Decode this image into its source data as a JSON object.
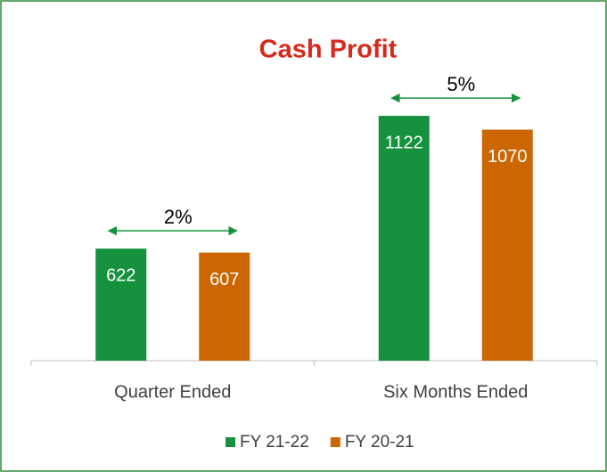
{
  "chart_data": {
    "type": "bar",
    "title": "Cash Profit",
    "categories": [
      "Quarter Ended",
      "Six Months Ended"
    ],
    "series": [
      {
        "name": "FY 21-22",
        "color": "#16923f",
        "values": [
          622,
          1122
        ]
      },
      {
        "name": "FY 20-21",
        "color": "#cc6600",
        "values": [
          607,
          1070
        ]
      }
    ],
    "annotations": [
      "2%",
      "5%"
    ],
    "ylim": [
      200,
      1300
    ],
    "legend": "bottom",
    "grid": false
  }
}
